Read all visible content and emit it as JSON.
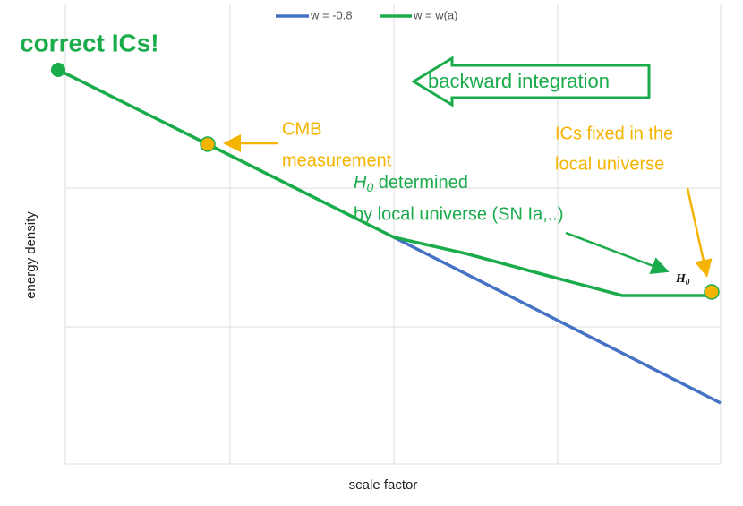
{
  "legend": [
    "w = -0.8",
    "w = w(a)"
  ],
  "title": "correct ICs!",
  "arrow_label": "backward integration",
  "cmb": [
    "CMB",
    "measurement"
  ],
  "ics_fixed": [
    "ICs fixed in the",
    "local universe"
  ],
  "h0_note": {
    "symbol": "H",
    "subscript": "0",
    "rest": " determined",
    "line2": "by local universe (SN Ia,..)"
  },
  "h0_marker": {
    "symbol": "H",
    "subscript": "0"
  },
  "y_label": "energy density",
  "x_label": "scale factor"
}
